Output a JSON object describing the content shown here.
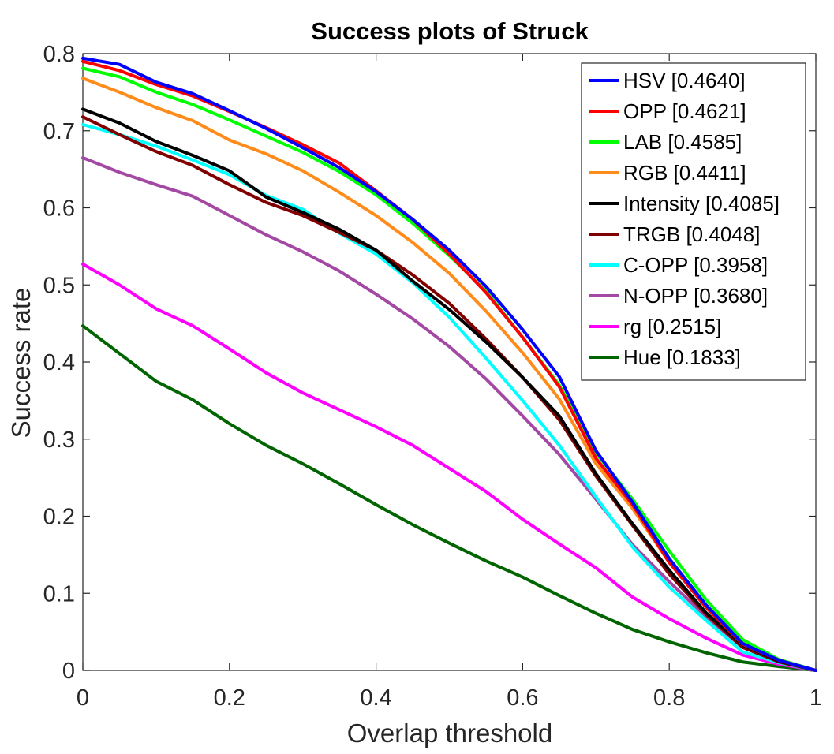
{
  "chart_data": {
    "type": "line",
    "title": "Success plots of Struck",
    "xlabel": "Overlap threshold",
    "ylabel": "Success rate",
    "xlim": [
      0,
      1
    ],
    "ylim": [
      0,
      0.8
    ],
    "xticks": [
      0,
      0.2,
      0.4,
      0.6,
      0.8,
      1
    ],
    "xtick_labels": [
      "0",
      "0.2",
      "0.4",
      "0.6",
      "0.8",
      "1"
    ],
    "yticks": [
      0,
      0.1,
      0.2,
      0.3,
      0.4,
      0.5,
      0.6,
      0.7,
      0.8
    ],
    "ytick_labels": [
      "0",
      "0.1",
      "0.2",
      "0.3",
      "0.4",
      "0.5",
      "0.6",
      "0.7",
      "0.8"
    ],
    "grid": false,
    "legend_position": "top-right",
    "x": [
      0,
      0.05,
      0.1,
      0.15,
      0.2,
      0.25,
      0.3,
      0.35,
      0.4,
      0.45,
      0.5,
      0.55,
      0.6,
      0.65,
      0.7,
      0.75,
      0.8,
      0.85,
      0.9,
      0.95,
      1
    ],
    "series": [
      {
        "name": "HSV [0.4640]",
        "color": "#0000ff",
        "values": [
          0.794,
          0.786,
          0.763,
          0.748,
          0.726,
          0.703,
          0.678,
          0.652,
          0.621,
          0.585,
          0.545,
          0.498,
          0.442,
          0.381,
          0.285,
          0.218,
          0.145,
          0.085,
          0.035,
          0.013,
          0.0
        ]
      },
      {
        "name": "OPP [0.4621]",
        "color": "#ff0000",
        "values": [
          0.79,
          0.778,
          0.76,
          0.745,
          0.725,
          0.704,
          0.682,
          0.658,
          0.622,
          0.585,
          0.54,
          0.49,
          0.432,
          0.368,
          0.275,
          0.215,
          0.14,
          0.082,
          0.034,
          0.013,
          0.0
        ]
      },
      {
        "name": "LAB [0.4585]",
        "color": "#00ff00",
        "values": [
          0.781,
          0.77,
          0.75,
          0.734,
          0.714,
          0.693,
          0.672,
          0.647,
          0.617,
          0.58,
          0.538,
          0.492,
          0.432,
          0.37,
          0.282,
          0.222,
          0.155,
          0.092,
          0.04,
          0.014,
          0.0
        ]
      },
      {
        "name": "RGB [0.4411]",
        "color": "#ff8c1a",
        "values": [
          0.768,
          0.75,
          0.73,
          0.713,
          0.688,
          0.67,
          0.648,
          0.62,
          0.59,
          0.555,
          0.515,
          0.466,
          0.412,
          0.352,
          0.268,
          0.21,
          0.14,
          0.085,
          0.036,
          0.013,
          0.0
        ]
      },
      {
        "name": "Intensity [0.4085]",
        "color": "#000000",
        "values": [
          0.728,
          0.71,
          0.686,
          0.668,
          0.648,
          0.614,
          0.594,
          0.572,
          0.545,
          0.505,
          0.468,
          0.426,
          0.38,
          0.33,
          0.255,
          0.19,
          0.13,
          0.075,
          0.033,
          0.012,
          0.0
        ]
      },
      {
        "name": "TRGB [0.4048]",
        "color": "#800000",
        "values": [
          0.718,
          0.695,
          0.673,
          0.655,
          0.63,
          0.607,
          0.59,
          0.568,
          0.545,
          0.513,
          0.476,
          0.43,
          0.38,
          0.325,
          0.252,
          0.188,
          0.125,
          0.073,
          0.03,
          0.011,
          0.0
        ]
      },
      {
        "name": "C-OPP [0.3958]",
        "color": "#00ffff",
        "values": [
          0.708,
          0.695,
          0.68,
          0.662,
          0.643,
          0.616,
          0.598,
          0.567,
          0.54,
          0.503,
          0.458,
          0.405,
          0.35,
          0.292,
          0.225,
          0.16,
          0.108,
          0.065,
          0.024,
          0.01,
          0.0
        ]
      },
      {
        "name": "N-OPP [0.3680]",
        "color": "#a349a4",
        "values": [
          0.665,
          0.646,
          0.63,
          0.615,
          0.59,
          0.565,
          0.543,
          0.518,
          0.488,
          0.456,
          0.42,
          0.378,
          0.33,
          0.28,
          0.222,
          0.163,
          0.115,
          0.07,
          0.03,
          0.011,
          0.0
        ]
      },
      {
        "name": "rg [0.2515]",
        "color": "#ff00ff",
        "values": [
          0.527,
          0.5,
          0.469,
          0.447,
          0.417,
          0.386,
          0.36,
          0.338,
          0.316,
          0.292,
          0.262,
          0.232,
          0.196,
          0.164,
          0.133,
          0.095,
          0.067,
          0.042,
          0.02,
          0.008,
          0.0
        ]
      },
      {
        "name": "Hue [0.1833]",
        "color": "#006400",
        "values": [
          0.447,
          0.411,
          0.375,
          0.351,
          0.32,
          0.292,
          0.268,
          0.242,
          0.215,
          0.189,
          0.165,
          0.142,
          0.121,
          0.097,
          0.074,
          0.053,
          0.037,
          0.023,
          0.011,
          0.005,
          0.0
        ]
      }
    ]
  }
}
